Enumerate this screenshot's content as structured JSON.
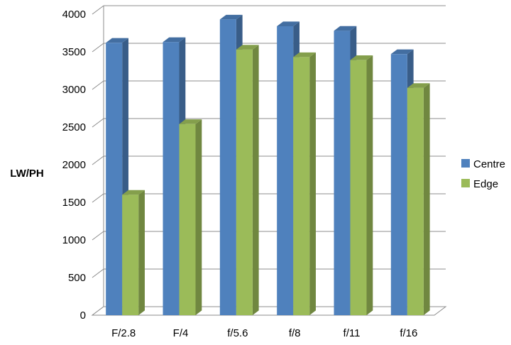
{
  "chart_data": {
    "type": "bar",
    "title": "",
    "xlabel": "",
    "ylabel": "LW/PH",
    "ylim": [
      0,
      4000
    ],
    "yticks": [
      0,
      500,
      1000,
      1500,
      2000,
      2500,
      3000,
      3500,
      4000
    ],
    "grid": true,
    "legend_position": "right",
    "categories": [
      "F/2.8",
      "F/4",
      "f/5.6",
      "f/8",
      "f/11",
      "f/16"
    ],
    "series": [
      {
        "name": "Centre",
        "color": "#4f81bd",
        "values": [
          3620,
          3630,
          3930,
          3840,
          3780,
          3470
        ]
      },
      {
        "name": "Edge",
        "color": "#9bbb59",
        "values": [
          1600,
          2540,
          3530,
          3430,
          3390,
          3020
        ]
      }
    ]
  }
}
